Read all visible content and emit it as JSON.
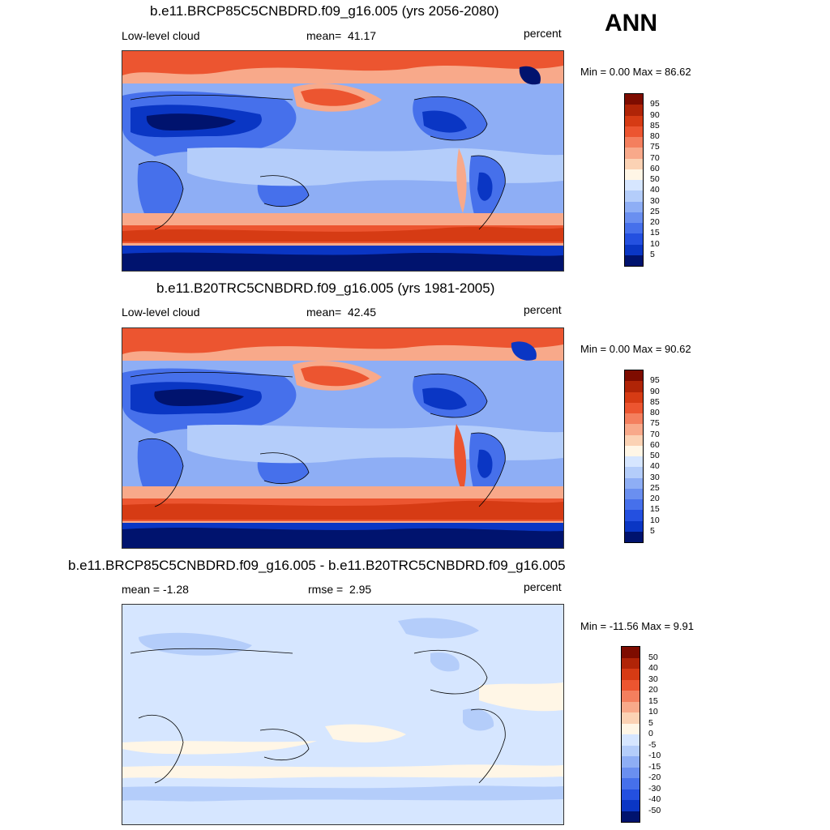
{
  "season": "ANN",
  "panels": [
    {
      "title": "b.e11.BRCP85C5CNBDRD.f09_g16.005 (yrs 2056-2080)",
      "left": "Low-level cloud",
      "center_label": "mean=",
      "center_value": "41.17",
      "right": "percent",
      "minmax": "Min =   0.00 Max =  86.62",
      "colors": [
        "#ffffff",
        "#d6e6ff",
        "#b4cdfa",
        "#8eaef5",
        "#6a8ff0",
        "#4670eb",
        "#2450e0",
        "#0a36c4",
        "#042a99",
        "#00136e",
        "#d6e6ff",
        "#b4cdfa",
        "#8eaef5",
        "#4670eb",
        "#0a36c4",
        "#fff6e6",
        "#fbd2b4",
        "#f8a98a",
        "#f47f5e",
        "#ec5530",
        "#d63b14",
        "#b02407",
        "#7e0c00"
      ],
      "levels": [
        "95",
        "90",
        "85",
        "80",
        "75",
        "70",
        "60",
        "50",
        "40",
        "30",
        "25",
        "20",
        "15",
        "10",
        "5"
      ]
    },
    {
      "title": "b.e11.B20TRC5CNBDRD.f09_g16.005 (yrs 1981-2005)",
      "left": "Low-level cloud",
      "center_label": "mean=",
      "center_value": "42.45",
      "right": "percent",
      "minmax": "Min =   0.00 Max =  90.62",
      "levels": [
        "95",
        "90",
        "85",
        "80",
        "75",
        "70",
        "60",
        "50",
        "40",
        "30",
        "25",
        "20",
        "15",
        "10",
        "5"
      ]
    },
    {
      "title": "b.e11.BRCP85C5CNBDRD.f09_g16.005 - b.e11.B20TRC5CNBDRD.f09_g16.005",
      "left": "mean =  -1.28",
      "center_label": "rmse =",
      "center_value": "2.95",
      "right": "percent",
      "minmax": "Min = -11.56 Max =   9.91",
      "levels": [
        "50",
        "40",
        "30",
        "20",
        "15",
        "10",
        "5",
        "0",
        "-5",
        "-10",
        "-15",
        "-20",
        "-30",
        "-40",
        "-50"
      ]
    }
  ],
  "colorbar_colors": [
    "#7e0c00",
    "#b02407",
    "#d63b14",
    "#ec5530",
    "#f47f5e",
    "#f8a98a",
    "#fbd2b4",
    "#fff6e6",
    "#d6e6ff",
    "#b4cdfa",
    "#8eaef5",
    "#6a8ff0",
    "#4670eb",
    "#2450e0",
    "#0a36c4",
    "#00136e"
  ]
}
